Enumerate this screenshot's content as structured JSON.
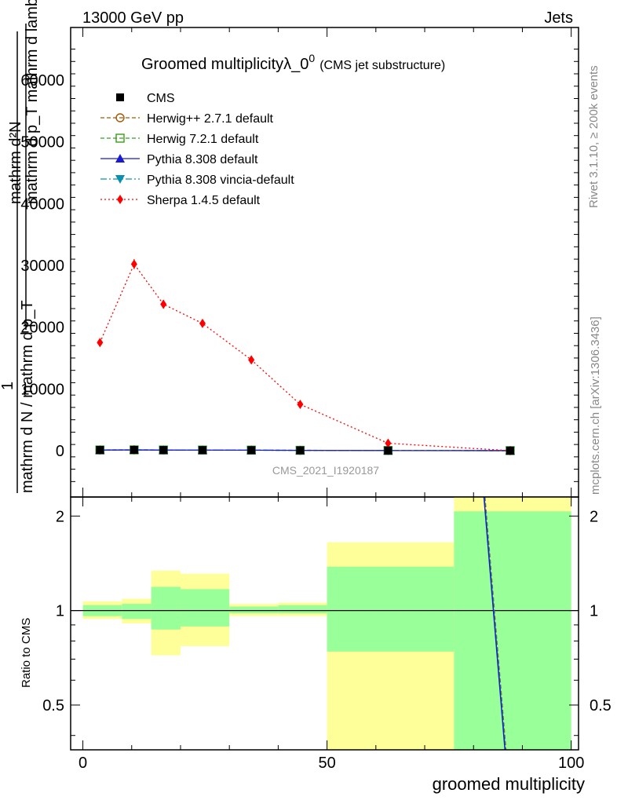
{
  "header": {
    "left_label": "13000 GeV pp",
    "right_label": "Jets"
  },
  "side_labels": {
    "rivet": "Rivet 3.1.10, ≥ 200k events",
    "mcplots": "mcplots.cern.ch [arXiv:1306.3436]"
  },
  "main_title": {
    "text": "Groomed multiplicityλ_0",
    "superscript": "0",
    "suffix": "(CMS jet substructure)"
  },
  "ylabel_main": {
    "line1": "mathrm d²N",
    "line2": "mathrm d p_T mathrm d lambda",
    "line3": "1",
    "line4": "mathrm d N / mathrm d p_T"
  },
  "analysis_id": "CMS_2021_I1920187",
  "ratio": {
    "ylabel": "Ratio to CMS",
    "yticks": [
      0.5,
      1,
      2
    ],
    "ylim": [
      0.36,
      2.3
    ],
    "bands": [
      {
        "x0": 0,
        "x1": 8,
        "y_lo": 0.96,
        "y_hi": 1.04,
        "tot_lo": 0.94,
        "tot_hi": 1.07
      },
      {
        "x0": 8,
        "x1": 14,
        "y_lo": 0.94,
        "y_hi": 1.05,
        "tot_lo": 0.91,
        "tot_hi": 1.09
      },
      {
        "x0": 14,
        "x1": 20,
        "y_lo": 0.87,
        "y_hi": 1.19,
        "tot_lo": 0.72,
        "tot_hi": 1.34
      },
      {
        "x0": 20,
        "x1": 30,
        "y_lo": 0.89,
        "y_hi": 1.17,
        "tot_lo": 0.77,
        "tot_hi": 1.31
      },
      {
        "x0": 30,
        "x1": 40,
        "y_lo": 0.98,
        "y_hi": 1.03,
        "tot_lo": 0.96,
        "tot_hi": 1.05
      },
      {
        "x0": 40,
        "x1": 50,
        "y_lo": 0.98,
        "y_hi": 1.04,
        "tot_lo": 0.96,
        "tot_hi": 1.06
      },
      {
        "x0": 50,
        "x1": 76,
        "y_lo": 0.74,
        "y_hi": 1.38,
        "tot_lo": 0.36,
        "tot_hi": 1.65
      },
      {
        "x0": 76,
        "x1": 100,
        "y_lo": 0.36,
        "y_hi": 2.07,
        "tot_lo": 0.36,
        "tot_hi": 2.3
      }
    ],
    "mc_line": {
      "x": [
        82.2,
        86.5
      ],
      "y": [
        2.3,
        0.36
      ]
    }
  },
  "chart_data": {
    "type": "line",
    "title": "Groomed multiplicityλ_0^0 (CMS jet substructure)",
    "xlabel": "groomed multiplicity",
    "ylabel": "(1 / dN/dp_T) d²N / dp_T dλ",
    "xlim": [
      -2.5,
      101.5
    ],
    "ylim": [
      -7500,
      68500
    ],
    "xticks": [
      0,
      50,
      100
    ],
    "yticks": [
      0,
      10000,
      20000,
      30000,
      40000,
      50000,
      60000
    ],
    "ytick_labels": [
      "0",
      "10000",
      "20000",
      "30000",
      "40000",
      "50000",
      "60000"
    ],
    "grid": false,
    "legend_position": "top-left",
    "x": [
      3.5,
      10.5,
      16.5,
      24.5,
      34.5,
      44.5,
      62.5,
      87.5
    ],
    "series": [
      {
        "name": "CMS",
        "color": "#000000",
        "marker": "square-filled",
        "line": "none",
        "values": [
          120,
          130,
          110,
          100,
          90,
          60,
          30,
          10
        ]
      },
      {
        "name": "Herwig++ 2.7.1 default",
        "color": "#a65800",
        "marker": "circle-open",
        "line": "dashed",
        "values": [
          110,
          125,
          105,
          95,
          85,
          55,
          25,
          5
        ]
      },
      {
        "name": "Herwig 7.2.1 default",
        "color": "#3b9c1c",
        "marker": "square-open",
        "line": "dashed",
        "values": [
          115,
          128,
          108,
          98,
          88,
          58,
          28,
          7
        ]
      },
      {
        "name": "Pythia 8.308 default",
        "color": "#1a1ad0",
        "marker": "triangle-up",
        "line": "solid",
        "values": [
          100,
          120,
          100,
          95,
          80,
          50,
          20,
          5
        ]
      },
      {
        "name": "Pythia 8.308 vincia-default",
        "color": "#0a8fb0",
        "marker": "triangle-down",
        "line": "dashdot",
        "values": [
          95,
          115,
          98,
          90,
          78,
          48,
          18,
          4
        ]
      },
      {
        "name": "Sherpa 1.4.5 default",
        "color": "#ff0000",
        "marker": "diamond",
        "line": "dotted",
        "values": [
          17500,
          30200,
          23700,
          20600,
          14700,
          7500,
          1200,
          0
        ],
        "errors": [
          500,
          800,
          700,
          500,
          400,
          250,
          120,
          0
        ]
      }
    ]
  }
}
